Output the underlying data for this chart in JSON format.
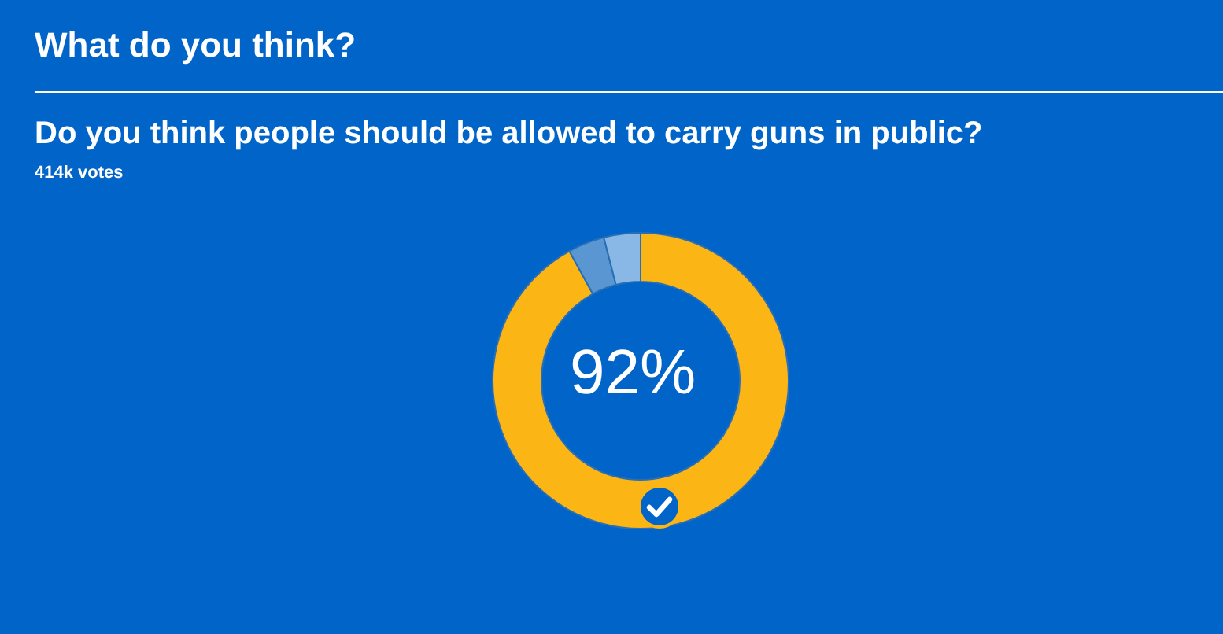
{
  "chart_data": {
    "type": "donut",
    "title": "What do you think?",
    "subtitle": "Do you think people should be allowed to carry guns in public?",
    "annotations": [
      "414k votes"
    ],
    "categories": [
      null,
      null,
      null
    ],
    "values": [
      92,
      4,
      4
    ],
    "colors": [
      "#fbb515",
      "#5a96d2",
      "#8ab8e6"
    ],
    "value_labels": [
      "92%",
      null,
      null
    ]
  }
}
